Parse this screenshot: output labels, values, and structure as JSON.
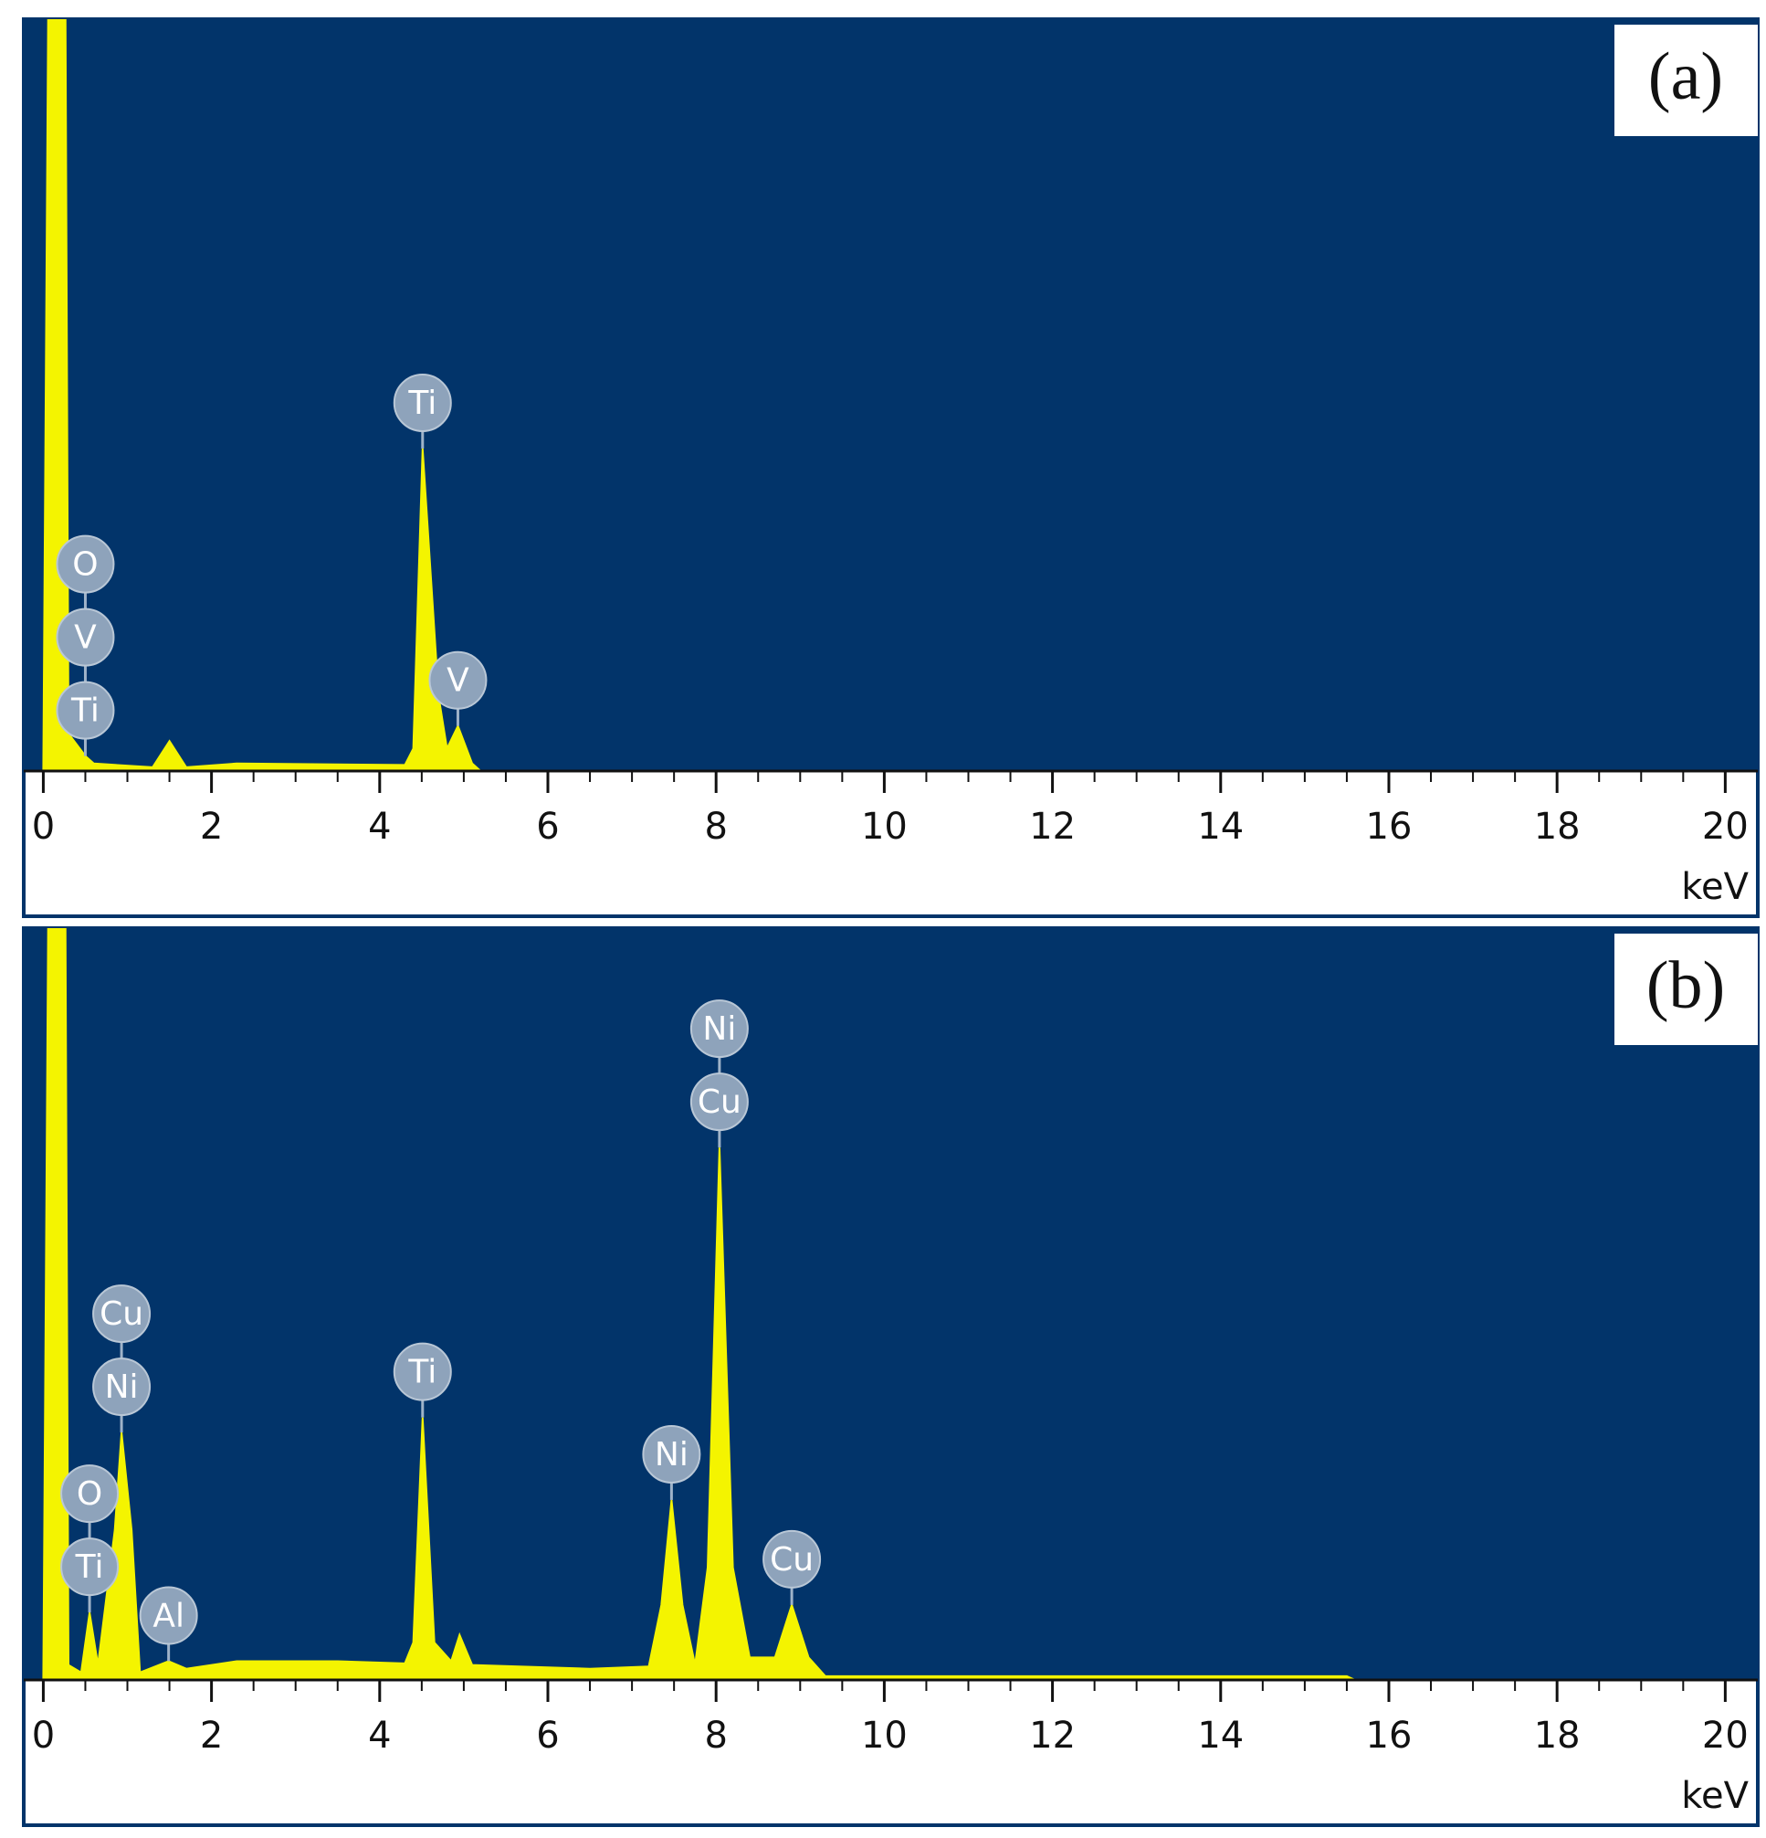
{
  "chart_data": [
    {
      "type": "area",
      "panel_label": "(a)",
      "xlabel": "keV",
      "color": "#f4f400",
      "background": "#02346a",
      "xlim": [
        -0.2,
        20.3
      ],
      "ylim": [
        0,
        100
      ],
      "xticks": [
        0,
        2,
        4,
        6,
        8,
        10,
        12,
        14,
        16,
        18,
        20
      ],
      "minor_xticks": [
        0.5,
        1,
        1.5,
        2.5,
        3,
        3.5,
        4.5,
        5,
        5.5,
        6.5,
        7,
        7.5,
        8.5,
        9,
        9.5,
        10.5,
        11,
        11.5,
        12.5,
        13,
        13.5,
        14.5,
        15,
        15.5,
        16.5,
        17,
        17.5,
        18.5,
        19,
        19.5
      ],
      "x": [
        0,
        0.08,
        0.25,
        0.3,
        0.5,
        0.6,
        1.3,
        1.5,
        1.7,
        2.3,
        4.3,
        4.4,
        4.51,
        4.7,
        4.8,
        4.93,
        5.1,
        5.2,
        20
      ],
      "values": [
        0,
        140,
        140,
        5,
        2,
        1,
        0.5,
        4,
        0.5,
        1,
        0.8,
        3,
        43,
        10,
        3,
        6,
        1,
        0,
        0
      ],
      "peak_labels": [
        {
          "x": 0.5,
          "labels": [
            "Ti",
            "V",
            "O"
          ]
        },
        {
          "x": 4.51,
          "labels": [
            "Ti"
          ]
        },
        {
          "x": 4.93,
          "labels": [
            "V"
          ]
        }
      ]
    },
    {
      "type": "area",
      "panel_label": "(b)",
      "xlabel": "keV",
      "color": "#f4f400",
      "background": "#02346a",
      "xlim": [
        -0.2,
        20.3
      ],
      "ylim": [
        0,
        100
      ],
      "xticks": [
        0,
        2,
        4,
        6,
        8,
        10,
        12,
        14,
        16,
        18,
        20
      ],
      "minor_xticks": [
        0.5,
        1,
        1.5,
        2.5,
        3,
        3.5,
        4.5,
        5,
        5.5,
        6.5,
        7,
        7.5,
        8.5,
        9,
        9.5,
        10.5,
        11,
        11.5,
        12.5,
        13,
        13.5,
        14.5,
        15,
        15.5,
        16.5,
        17,
        17.5,
        18.5,
        19,
        19.5
      ],
      "x": [
        0,
        0.08,
        0.25,
        0.3,
        0.45,
        0.55,
        0.65,
        0.85,
        0.93,
        1.05,
        1.15,
        1.49,
        1.7,
        2.3,
        3.5,
        4.3,
        4.4,
        4.51,
        4.65,
        4.85,
        4.95,
        5.1,
        6.5,
        7.2,
        7.35,
        7.47,
        7.6,
        7.75,
        7.9,
        8.04,
        8.2,
        8.4,
        8.7,
        8.9,
        9.1,
        9.3,
        15.5,
        15.6,
        20
      ],
      "values": [
        0,
        140,
        140,
        2,
        1,
        9,
        2,
        20,
        33,
        20,
        1,
        2.5,
        1.5,
        2.5,
        2.5,
        2.2,
        5,
        35,
        5,
        2.5,
        6,
        2,
        1.5,
        1.8,
        10,
        24,
        10,
        2,
        15,
        71,
        15,
        3,
        3,
        10,
        3,
        0.5,
        0.5,
        0,
        0
      ],
      "peak_labels": [
        {
          "x": 0.55,
          "labels": [
            "Ti",
            "O"
          ]
        },
        {
          "x": 0.93,
          "labels": [
            "Ni",
            "Cu"
          ]
        },
        {
          "x": 1.49,
          "labels": [
            "Al"
          ]
        },
        {
          "x": 4.51,
          "labels": [
            "Ti"
          ]
        },
        {
          "x": 7.47,
          "labels": [
            "Ni"
          ]
        },
        {
          "x": 8.04,
          "labels": [
            "Cu",
            "Ni"
          ]
        },
        {
          "x": 8.9,
          "labels": [
            "Cu"
          ]
        }
      ]
    }
  ]
}
